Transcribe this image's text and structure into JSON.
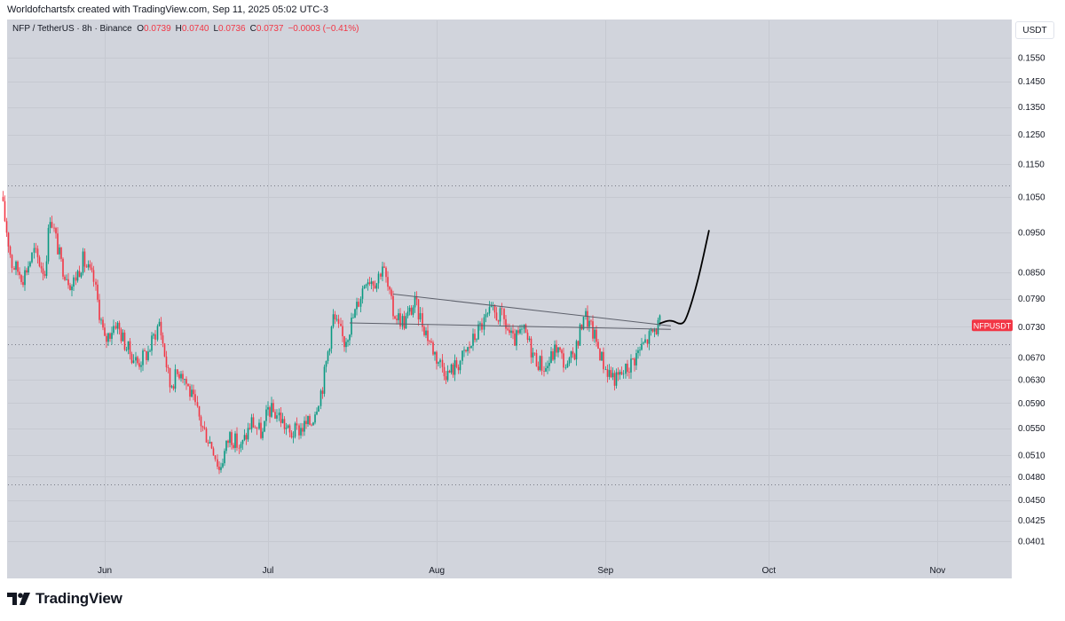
{
  "header": {
    "credit": "Worldofchartsfx created with TradingView.com, Sep 11, 2025 05:02 UTC-3"
  },
  "legend": {
    "symbol": "NFP / TetherUS · 8h · Binance",
    "open_label": "O",
    "open": "0.0739",
    "high_label": "H",
    "high": "0.0740",
    "low_label": "L",
    "low": "0.0736",
    "close_label": "C",
    "close": "0.0737",
    "change": "−0.0003 (−0.41%)"
  },
  "unit_button": "USDT",
  "price_tag": {
    "label": "NFPUSDT",
    "color": "#f23645"
  },
  "brand": {
    "name": "TradingView",
    "logo_icon": "tradingview-logo-icon"
  },
  "colors": {
    "up": "#089981",
    "down": "#f23645",
    "plot_bg": "#d1d4dc"
  },
  "chart_data": {
    "type": "candlestick",
    "interval": "8h",
    "y_scale": "log",
    "ylim": [
      0.039,
      0.162
    ],
    "y_ticks": [
      "0.1550",
      "0.1450",
      "0.1350",
      "0.1250",
      "0.1150",
      "0.1050",
      "0.0950",
      "0.0850",
      "0.0790",
      "0.0730",
      "0.0670",
      "0.0630",
      "0.0590",
      "0.0550",
      "0.0510",
      "0.0480",
      "0.0450",
      "0.0425",
      "0.0401"
    ],
    "x_ticks": [
      "Jun",
      "Jul",
      "Aug",
      "Sep",
      "Oct",
      "Nov"
    ],
    "x_tick_dates": [
      "2025-06-01",
      "2025-07-01",
      "2025-08-01",
      "2025-09-01",
      "2025-10-01",
      "2025-11-01"
    ],
    "x_range": [
      "2025-05-13",
      "2025-11-13"
    ],
    "close_series": [
      {
        "t": "2025-05-13",
        "c": 0.105
      },
      {
        "t": "2025-05-15",
        "c": 0.087
      },
      {
        "t": "2025-05-17",
        "c": 0.084
      },
      {
        "t": "2025-05-19",
        "c": 0.09
      },
      {
        "t": "2025-05-21",
        "c": 0.085
      },
      {
        "t": "2025-05-22",
        "c": 0.1
      },
      {
        "t": "2025-05-24",
        "c": 0.087
      },
      {
        "t": "2025-05-26",
        "c": 0.082
      },
      {
        "t": "2025-05-28",
        "c": 0.088
      },
      {
        "t": "2025-05-30",
        "c": 0.083
      },
      {
        "t": "2025-06-01",
        "c": 0.07
      },
      {
        "t": "2025-06-03",
        "c": 0.074
      },
      {
        "t": "2025-06-05",
        "c": 0.069
      },
      {
        "t": "2025-06-07",
        "c": 0.066
      },
      {
        "t": "2025-06-09",
        "c": 0.068
      },
      {
        "t": "2025-06-11",
        "c": 0.074
      },
      {
        "t": "2025-06-13",
        "c": 0.062
      },
      {
        "t": "2025-06-15",
        "c": 0.065
      },
      {
        "t": "2025-06-17",
        "c": 0.06
      },
      {
        "t": "2025-06-19",
        "c": 0.055
      },
      {
        "t": "2025-06-21",
        "c": 0.052
      },
      {
        "t": "2025-06-22",
        "c": 0.049
      },
      {
        "t": "2025-06-24",
        "c": 0.054
      },
      {
        "t": "2025-06-26",
        "c": 0.052
      },
      {
        "t": "2025-06-28",
        "c": 0.056
      },
      {
        "t": "2025-06-30",
        "c": 0.054
      },
      {
        "t": "2025-07-01",
        "c": 0.058
      },
      {
        "t": "2025-07-03",
        "c": 0.057
      },
      {
        "t": "2025-07-05",
        "c": 0.054
      },
      {
        "t": "2025-07-07",
        "c": 0.055
      },
      {
        "t": "2025-07-09",
        "c": 0.056
      },
      {
        "t": "2025-07-11",
        "c": 0.062
      },
      {
        "t": "2025-07-13",
        "c": 0.075
      },
      {
        "t": "2025-07-15",
        "c": 0.07
      },
      {
        "t": "2025-07-17",
        "c": 0.076
      },
      {
        "t": "2025-07-19",
        "c": 0.084
      },
      {
        "t": "2025-07-21",
        "c": 0.083
      },
      {
        "t": "2025-07-22",
        "c": 0.087
      },
      {
        "t": "2025-07-24",
        "c": 0.076
      },
      {
        "t": "2025-07-26",
        "c": 0.074
      },
      {
        "t": "2025-07-28",
        "c": 0.078
      },
      {
        "t": "2025-07-30",
        "c": 0.072
      },
      {
        "t": "2025-08-01",
        "c": 0.067
      },
      {
        "t": "2025-08-03",
        "c": 0.064
      },
      {
        "t": "2025-08-05",
        "c": 0.066
      },
      {
        "t": "2025-08-07",
        "c": 0.069
      },
      {
        "t": "2025-08-09",
        "c": 0.073
      },
      {
        "t": "2025-08-11",
        "c": 0.076
      },
      {
        "t": "2025-08-13",
        "c": 0.075
      },
      {
        "t": "2025-08-15",
        "c": 0.07
      },
      {
        "t": "2025-08-17",
        "c": 0.072
      },
      {
        "t": "2025-08-19",
        "c": 0.067
      },
      {
        "t": "2025-08-21",
        "c": 0.065
      },
      {
        "t": "2025-08-23",
        "c": 0.069
      },
      {
        "t": "2025-08-25",
        "c": 0.065
      },
      {
        "t": "2025-08-27",
        "c": 0.07
      },
      {
        "t": "2025-08-28",
        "c": 0.076
      },
      {
        "t": "2025-08-30",
        "c": 0.071
      },
      {
        "t": "2025-09-01",
        "c": 0.065
      },
      {
        "t": "2025-09-03",
        "c": 0.063
      },
      {
        "t": "2025-09-05",
        "c": 0.065
      },
      {
        "t": "2025-09-07",
        "c": 0.068
      },
      {
        "t": "2025-09-09",
        "c": 0.071
      },
      {
        "t": "2025-09-11",
        "c": 0.0737
      }
    ],
    "horizontal_levels": [
      0.1085,
      0.0695,
      0.047
    ],
    "trendlines": [
      {
        "from": {
          "t": "2025-07-24",
          "p": 0.08
        },
        "to": {
          "t": "2025-09-13",
          "p": 0.0732
        }
      },
      {
        "from": {
          "t": "2025-07-16",
          "p": 0.0738
        },
        "to": {
          "t": "2025-09-13",
          "p": 0.0725
        }
      }
    ],
    "projection": [
      {
        "t": "2025-09-11",
        "p": 0.0737
      },
      {
        "t": "2025-09-13",
        "p": 0.0745
      },
      {
        "t": "2025-09-15",
        "p": 0.0733
      },
      {
        "t": "2025-09-16",
        "p": 0.075
      },
      {
        "t": "2025-09-18",
        "p": 0.083
      },
      {
        "t": "2025-09-20",
        "p": 0.0955
      }
    ]
  }
}
